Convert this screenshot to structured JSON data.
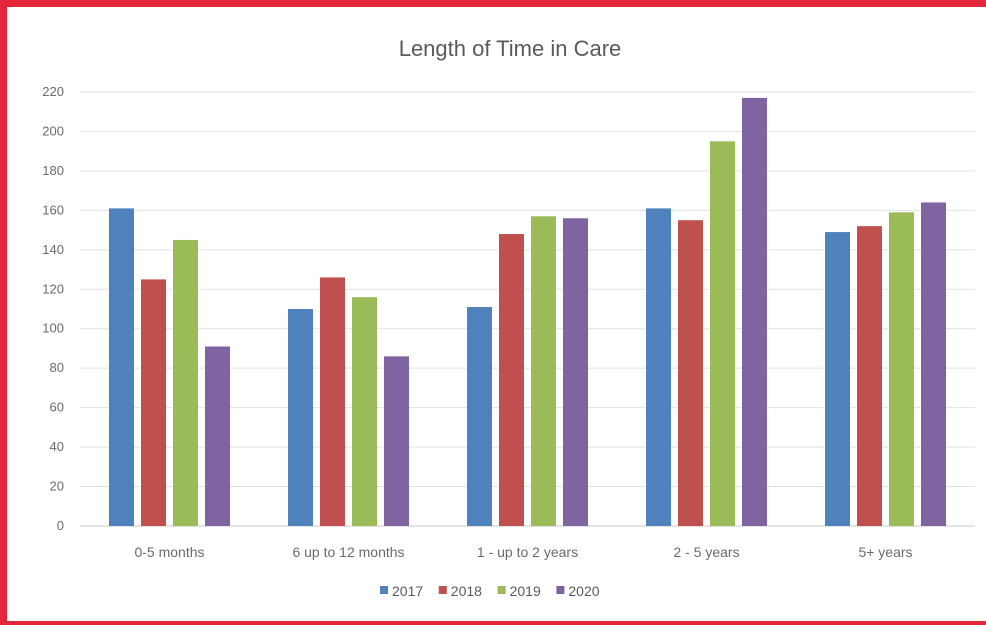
{
  "chart_data": {
    "type": "bar",
    "title": "Length of Time in Care",
    "xlabel": "",
    "ylabel": "",
    "ylim": [
      0,
      220
    ],
    "yticks": [
      0,
      20,
      40,
      60,
      80,
      100,
      120,
      140,
      160,
      180,
      200,
      220
    ],
    "grid": true,
    "legend_position": "bottom",
    "categories": [
      "0-5 months",
      "6 up to 12 months",
      "1 - up to 2 years",
      "2 - 5 years",
      "5+ years"
    ],
    "series": [
      {
        "name": "2017",
        "color": "#4f81bd",
        "values": [
          161,
          110,
          111,
          161,
          149
        ]
      },
      {
        "name": "2018",
        "color": "#c0504d",
        "values": [
          125,
          126,
          148,
          155,
          152
        ]
      },
      {
        "name": "2019",
        "color": "#9bbb59",
        "values": [
          145,
          116,
          157,
          195,
          159
        ]
      },
      {
        "name": "2020",
        "color": "#8064a2",
        "values": [
          91,
          86,
          156,
          217,
          164
        ]
      }
    ]
  }
}
